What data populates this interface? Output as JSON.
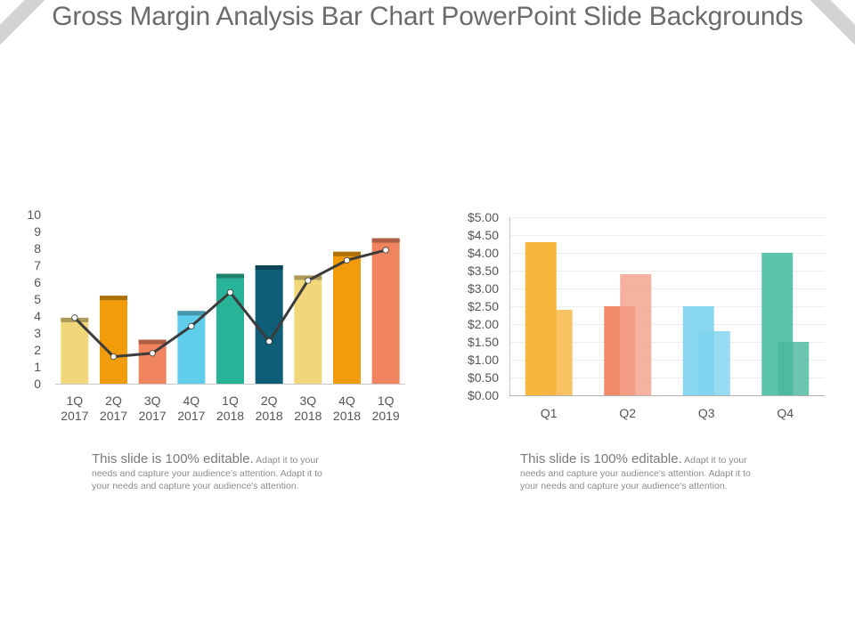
{
  "page": {
    "title": "Gross Margin Analysis Bar Chart PowerPoint Slide Backgrounds"
  },
  "text_blocks": [
    {
      "lead": "This slide is 100% editable.",
      "body": "Adapt it to your needs and capture your audience's attention. Adapt it to your needs and capture your audience's attention."
    },
    {
      "lead": "This slide is 100% editable.",
      "body": "Adapt it to your needs and capture your audience's attention. Adapt it to your needs and capture your audience's attention."
    }
  ],
  "chart_data": [
    {
      "type": "bar",
      "categories": [
        [
          "1Q",
          "2017"
        ],
        [
          "2Q",
          "2017"
        ],
        [
          "3Q",
          "2017"
        ],
        [
          "4Q",
          "2017"
        ],
        [
          "1Q",
          "2018"
        ],
        [
          "2Q",
          "2018"
        ],
        [
          "3Q",
          "2018"
        ],
        [
          "4Q",
          "2018"
        ],
        [
          "1Q",
          "2019"
        ]
      ],
      "series": [
        {
          "type": "bar",
          "values": [
            3.9,
            5.2,
            2.6,
            4.3,
            6.5,
            7.0,
            6.4,
            7.8,
            8.6
          ]
        },
        {
          "type": "line",
          "values": [
            3.9,
            1.6,
            1.8,
            3.4,
            5.4,
            2.5,
            6.1,
            7.3,
            7.9
          ]
        }
      ],
      "bar_colors": [
        "#efd77a",
        "#f29c0c",
        "#f0845e",
        "#60cdec",
        "#27b498",
        "#0f5e78",
        "#efd77a",
        "#f29c0c",
        "#f0845e"
      ],
      "yticks": [
        "0",
        "1",
        "2",
        "3",
        "4",
        "5",
        "6",
        "7",
        "8",
        "9",
        "10"
      ],
      "ylim": [
        0,
        10
      ],
      "line_color": "#3b3b3b"
    },
    {
      "type": "bar",
      "categories": [
        "Q1",
        "Q2",
        "Q3",
        "Q4"
      ],
      "series": [
        {
          "values": [
            4.3,
            2.5,
            2.5,
            4.0
          ]
        },
        {
          "values": [
            2.4,
            3.4,
            1.8,
            1.5
          ]
        }
      ],
      "bar_colors": [
        [
          "#f6b02e",
          "#f7b641"
        ],
        [
          "#f0805b",
          "#f3a28a"
        ],
        [
          "#7fd3ef",
          "#7fd3ef"
        ],
        [
          "#4cc0a5",
          "#4cb89c"
        ]
      ],
      "yticks": [
        "$0.00",
        "$0.50",
        "$1.00",
        "$1.50",
        "$2.00",
        "$2.50",
        "$3.00",
        "$3.50",
        "$4.00",
        "$4.50",
        "$5.00"
      ],
      "ylim": [
        0,
        5
      ],
      "grid": true
    }
  ]
}
